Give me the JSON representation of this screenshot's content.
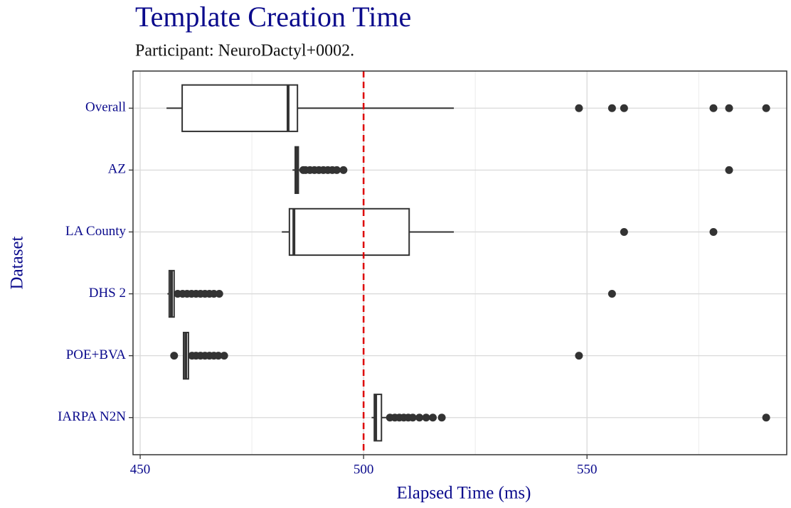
{
  "chart_data": {
    "type": "boxplot",
    "title": "Template Creation Time",
    "subtitle": "Participant: NeuroDactyl+0002.",
    "x_label": "Elapsed Time (ms)",
    "y_label": "Dataset",
    "orientation": "horizontal",
    "categories": [
      "Overall",
      "AZ",
      "LA County",
      "DHS 2",
      "POE+BVA",
      "IARPA N2N"
    ],
    "boxes": [
      {
        "whisker_low": 455.9,
        "q1": 459.4,
        "median": 483.1,
        "q3": 485.2,
        "whisker_high": 520.2,
        "outliers": [
          548.2,
          555.6,
          558.3,
          578.3,
          581.8,
          590.1
        ]
      },
      {
        "whisker_low": 484.1,
        "q1": 484.7,
        "median": 485.0,
        "q3": 485.4,
        "whisker_high": 486.0,
        "outliers": [
          486.5,
          487.0,
          488.0,
          489.0,
          490.0,
          491.0,
          492.0,
          493.0,
          494.0,
          495.5,
          581.8
        ]
      },
      {
        "whisker_low": 481.7,
        "q1": 483.4,
        "median": 484.4,
        "q3": 510.2,
        "whisker_high": 520.2,
        "outliers": [
          558.3,
          578.3
        ]
      },
      {
        "whisker_low": 456.1,
        "q1": 456.5,
        "median": 457.0,
        "q3": 457.6,
        "whisker_high": 458.0,
        "outliers": [
          458.4,
          459.5,
          460.5,
          461.5,
          462.5,
          463.5,
          464.5,
          465.5,
          466.5,
          467.7,
          555.6
        ]
      },
      {
        "whisker_low": 459.6,
        "q1": 459.7,
        "median": 460.2,
        "q3": 460.8,
        "whisker_high": 461.2,
        "outliers": [
          457.6,
          461.6,
          462.5,
          463.5,
          464.5,
          465.5,
          466.5,
          467.5,
          468.8,
          548.2
        ]
      },
      {
        "whisker_low": 501.8,
        "q1": 502.4,
        "median": 502.7,
        "q3": 504.0,
        "whisker_high": 505.4,
        "outliers": [
          505.9,
          507.0,
          508.0,
          509.0,
          510.0,
          511.0,
          512.5,
          514.0,
          515.5,
          517.5,
          590.1
        ]
      }
    ],
    "color": "#333333",
    "xlim": [
      448.4,
      594.7
    ],
    "xticks": [
      450,
      500,
      550
    ],
    "xminor": [
      475,
      525,
      575
    ],
    "grid": true,
    "reference_line": 500,
    "reference_color": "#dd0000"
  }
}
